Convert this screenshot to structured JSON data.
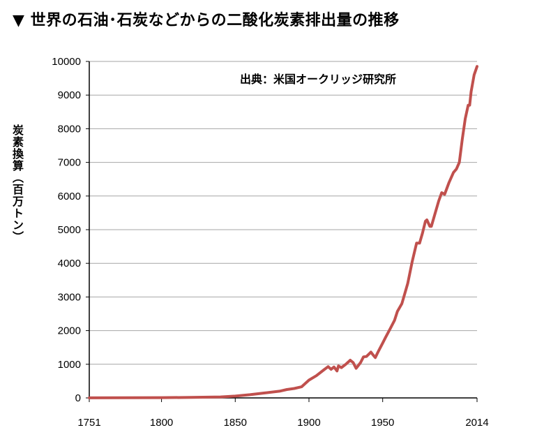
{
  "title": "▼ 世界の石油･石炭などからの二酸化炭素排出量の推移",
  "chart_data": {
    "type": "line",
    "title": "世界の石油･石炭などからの二酸化炭素排出量の推移",
    "annotation": "出典：米国オークリッジ研究所",
    "ylabel": "炭素換算（百万トン）",
    "xlabel": "",
    "xlim": [
      1751,
      2014
    ],
    "ylim": [
      0,
      10000
    ],
    "x_ticks": [
      1751,
      1800,
      1850,
      1900,
      1950,
      2014
    ],
    "y_ticks": [
      0,
      1000,
      2000,
      3000,
      4000,
      5000,
      6000,
      7000,
      8000,
      9000,
      10000
    ],
    "grid": "horizontal",
    "line_color": "#c0504d",
    "series": [
      {
        "name": "",
        "x": [
          1751,
          1800,
          1820,
          1840,
          1850,
          1860,
          1870,
          1880,
          1885,
          1890,
          1895,
          1900,
          1905,
          1910,
          1913,
          1915,
          1917,
          1919,
          1920,
          1922,
          1925,
          1928,
          1930,
          1932,
          1935,
          1937,
          1939,
          1942,
          1944,
          1945,
          1947,
          1950,
          1952,
          1955,
          1958,
          1960,
          1963,
          1965,
          1967,
          1970,
          1973,
          1975,
          1977,
          1979,
          1980,
          1982,
          1983,
          1985,
          1988,
          1990,
          1992,
          1995,
          1998,
          2000,
          2002,
          2004,
          2006,
          2008,
          2009,
          2010,
          2012,
          2014
        ],
        "values": [
          3,
          8,
          14,
          30,
          54,
          95,
          147,
          200,
          250,
          280,
          330,
          530,
          660,
          830,
          930,
          850,
          920,
          800,
          950,
          900,
          1000,
          1120,
          1050,
          880,
          1050,
          1220,
          1230,
          1360,
          1250,
          1200,
          1380,
          1630,
          1800,
          2050,
          2300,
          2570,
          2800,
          3100,
          3400,
          4050,
          4600,
          4600,
          4900,
          5250,
          5290,
          5100,
          5100,
          5400,
          5850,
          6100,
          6050,
          6400,
          6700,
          6800,
          7000,
          7700,
          8300,
          8700,
          8700,
          9100,
          9600,
          9850
        ]
      }
    ]
  }
}
